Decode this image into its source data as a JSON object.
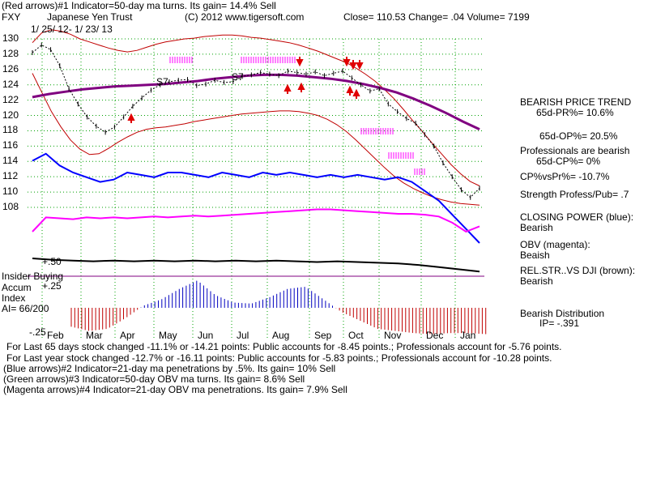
{
  "header": {
    "line1": "(Red arrows)#1 Indicator=50-day ma turns. Its gain= 14.4% Sell",
    "ticker": "FXY",
    "name": "Japanese Yen Trust",
    "copyright": "(C) 2012 www.tigersoft.com",
    "quote": "Close=  110.53  Change= .04 Volume= 7199",
    "date_range": "1/ 25/ 12-  1/ 23/ 13"
  },
  "right_panel": {
    "trend_title": "BEARISH PRICE TREND",
    "pr": "65d-PR%= 10.6%",
    "op": "65d-OP%= 20.5%",
    "pros_1": "Professionals are bearish",
    "cp": "65d-CP%= 0%",
    "cpvspr": "CP%vsPr%= -10.7%",
    "strength": "Strength Profess/Pub= .7",
    "closing_power": "CLOSING POWER (blue):",
    "closing_power_val": "Bearish",
    "obv": "OBV (magenta):",
    "obv_val": "Beaish",
    "relstr": "REL.STR..VS DJI (brown):",
    "relstr_val": "Bearish",
    "distribution": "Bearish Distribution",
    "ip": "IP= -.391"
  },
  "left_panel": {
    "insider": "Insider Buying",
    "accum": "Accum",
    "index": "Index",
    "ai": "AI= 66/200",
    "plus50": "+.50",
    "plus25": "+.25",
    "minus25": "-.25"
  },
  "footer": [
    "For Last 65 days stock changed -11.1% or -14.21 points:  Public accounts for -8.45 points.;  Professionals account for -5.76 points.",
    "For Last year stock changed -12.7% or -16.11 points:  Public accounts for -5.83 points.;  Professionals account for -10.28 points.",
    "(Blue arrows)#2 Indicator=21-day ma penetrations by .5%. Its gain= 10% Sell",
    "(Green arrows)#3 Indicator=50-day OBV ma turns. Its gain= 8.6% Sell",
    "(Magenta arrows)#4 Indicator=21-day OBV ma penetrations. Its gain= 7.9% Sell"
  ],
  "signals": {
    "s7_a": "S7",
    "s7_b": "S7"
  },
  "colors": {
    "grid": "#00a000",
    "price": "#000000",
    "band": "#c00000",
    "ma": "#800080",
    "closing_power": "#0000ff",
    "obv": "#ff00ff",
    "relstr": "#000000",
    "accum_pos": "#0000c0",
    "accum_neg": "#c00000",
    "insider_line": "#800080"
  },
  "chart_data": {
    "type": "line",
    "title": "Japanese Yen Trust (FXY)",
    "months": [
      "Feb",
      "Mar",
      "Apr",
      "May",
      "Jun",
      "Jul",
      "Aug",
      "Sep",
      "Oct",
      "Nov",
      "Dec",
      "Jan"
    ],
    "y_ticks": [
      130,
      128,
      126,
      124,
      122,
      120,
      118,
      116,
      114,
      112,
      110,
      108
    ],
    "ylim": [
      107,
      131
    ],
    "price": [
      128.2,
      129.2,
      128.6,
      126.5,
      123.5,
      121.5,
      119.8,
      118.6,
      117.8,
      118.5,
      119.8,
      121.2,
      122.3,
      123.3,
      124.0,
      124.4,
      124.6,
      124.7,
      123.9,
      124.1,
      124.6,
      124.3,
      124.4,
      125.1,
      125.3,
      125.6,
      125.4,
      125.2,
      125.8,
      125.6,
      125.4,
      125.7,
      125.2,
      125.5,
      125.8,
      124.9,
      124.0,
      123.2,
      123.5,
      121.5,
      120.5,
      119.6,
      119.0,
      117.5,
      116.0,
      113.8,
      112.0,
      110.3,
      109.3,
      110.5
    ],
    "upper_band": [
      129.5,
      130.8,
      131.2,
      131.0,
      130.6,
      130.0,
      129.6,
      129.2,
      128.8,
      128.5,
      128.3,
      128.5,
      128.9,
      129.3,
      129.6,
      129.8,
      130.0,
      130.1,
      130.3,
      130.4,
      130.5,
      130.5,
      130.4,
      130.2,
      130.1,
      129.9,
      129.7,
      129.5,
      129.2,
      128.8,
      128.4,
      127.9,
      127.4,
      126.9,
      126.2,
      125.4,
      124.5,
      123.4,
      122.2,
      120.8,
      119.3,
      117.9,
      116.4,
      115.0,
      113.6,
      112.4,
      111.4,
      110.8
    ],
    "lower_band": [
      125.5,
      123.0,
      120.5,
      118.5,
      116.8,
      115.6,
      114.9,
      115.0,
      115.7,
      116.5,
      117.2,
      117.8,
      118.2,
      118.4,
      118.5,
      118.7,
      118.9,
      119.2,
      119.4,
      119.6,
      119.8,
      120.0,
      120.2,
      120.3,
      120.4,
      120.5,
      120.6,
      120.6,
      120.5,
      120.3,
      120.0,
      119.5,
      118.8,
      117.9,
      116.8,
      115.6,
      114.4,
      113.2,
      112.1,
      111.2,
      110.5,
      109.9,
      109.4,
      109.0,
      108.7,
      108.5,
      108.4,
      108.3
    ],
    "ma50": [
      122.4,
      122.8,
      123.1,
      123.4,
      123.6,
      123.8,
      123.9,
      124.0,
      124.1,
      124.3,
      124.5,
      124.8,
      125.0,
      125.2,
      125.3,
      125.3,
      125.2,
      125.0,
      124.8,
      124.5,
      124.1,
      123.6,
      123.0,
      122.2,
      121.3,
      120.3,
      119.2,
      118.2
    ],
    "closing_power": [
      0.35,
      0.38,
      0.33,
      0.3,
      0.28,
      0.26,
      0.27,
      0.3,
      0.29,
      0.28,
      0.3,
      0.3,
      0.29,
      0.28,
      0.3,
      0.29,
      0.28,
      0.3,
      0.29,
      0.3,
      0.29,
      0.28,
      0.29,
      0.28,
      0.29,
      0.28,
      0.27,
      0.28,
      0.26,
      0.22,
      0.18,
      0.12,
      0.06,
      0.0
    ],
    "obv": [
      0.2,
      0.36,
      0.35,
      0.34,
      0.36,
      0.35,
      0.36,
      0.35,
      0.36,
      0.37,
      0.36,
      0.37,
      0.38,
      0.37,
      0.38,
      0.39,
      0.4,
      0.41,
      0.42,
      0.43,
      0.44,
      0.45,
      0.45,
      0.44,
      0.43,
      0.42,
      0.41,
      0.4,
      0.4,
      0.39,
      0.37,
      0.3,
      0.2,
      0.26
    ],
    "accum_index": [
      -0.18,
      -0.22,
      -0.2,
      -0.1,
      0.02,
      0.08,
      0.18,
      0.26,
      0.12,
      0.05,
      0.04,
      0.1,
      0.18,
      0.2,
      0.08,
      -0.04,
      -0.12,
      -0.2,
      -0.22,
      -0.24,
      -0.25,
      -0.24,
      -0.24,
      -0.25
    ],
    "signals": [
      "S7",
      "S7"
    ]
  }
}
